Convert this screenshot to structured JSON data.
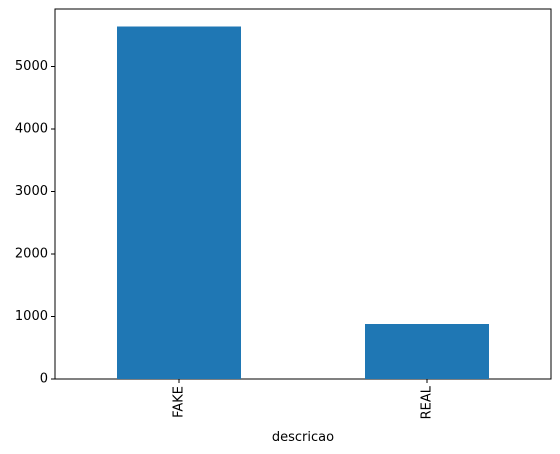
{
  "chart_data": {
    "type": "bar",
    "categories": [
      "FAKE",
      "REAL"
    ],
    "values": [
      5640,
      880
    ],
    "xlabel": "descricao",
    "ylabel": "",
    "ylim": [
      0,
      5920
    ],
    "yticks": [
      0,
      1000,
      2000,
      3000,
      4000,
      5000
    ],
    "grid": false,
    "bar_color": "#1f77b4",
    "tick_label_rotation_x": "vertical"
  }
}
